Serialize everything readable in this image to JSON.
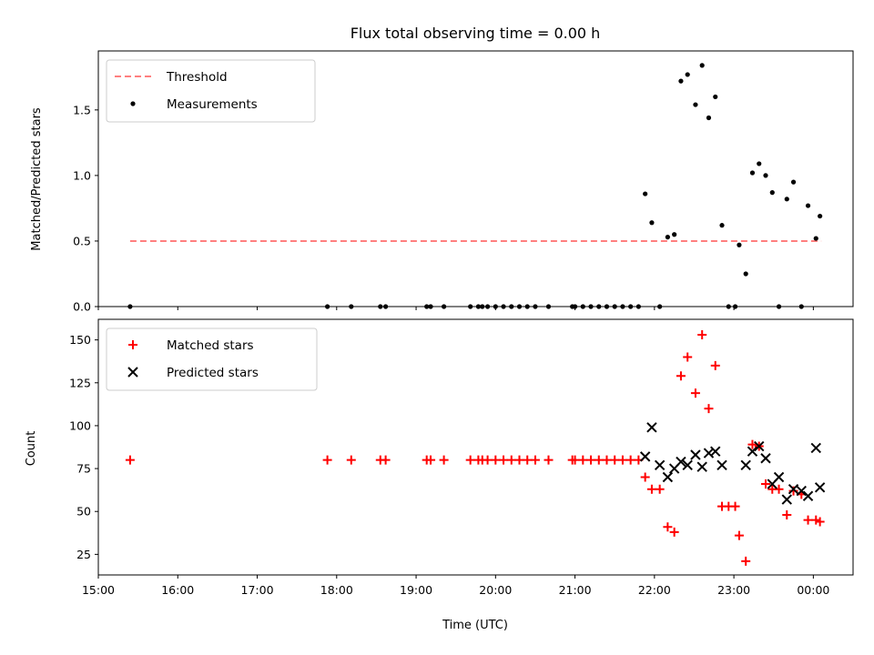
{
  "chart_data": [
    {
      "type": "scatter",
      "title": "Flux total observing time = 0.00 h",
      "xlabel": "",
      "ylabel": "Matched/Predicted stars",
      "xlim": [
        "15:00",
        "00:30"
      ],
      "ylim": [
        0,
        1.95
      ],
      "yticks": [
        "0.0",
        "0.5",
        "1.0",
        "1.5"
      ],
      "legend": "upper-left",
      "series": [
        {
          "name": "Threshold",
          "style": "dashed-line",
          "color": "#ff7f7f",
          "x": [
            "15:24",
            "00:06"
          ],
          "y": [
            0.5,
            0.5
          ]
        },
        {
          "name": "Measurements",
          "style": "dot",
          "color": "#000000",
          "x": [
            "15:24",
            "17:53",
            "18:11",
            "18:33",
            "18:37",
            "19:08",
            "19:11",
            "19:21",
            "19:41",
            "19:47",
            "19:50",
            "19:54",
            "20:00",
            "20:06",
            "20:12",
            "20:18",
            "20:24",
            "20:30",
            "20:40",
            "20:58",
            "21:00",
            "21:06",
            "21:12",
            "21:18",
            "21:24",
            "21:30",
            "21:36",
            "21:42",
            "21:48",
            "21:53",
            "21:58",
            "22:04",
            "22:10",
            "22:15",
            "22:20",
            "22:25",
            "22:31",
            "22:36",
            "22:41",
            "22:46",
            "22:51",
            "22:56",
            "23:01",
            "23:04",
            "23:09",
            "23:14",
            "23:19",
            "23:24",
            "23:29",
            "23:34",
            "23:40",
            "23:45",
            "23:51",
            "23:56",
            "00:02",
            "00:05"
          ],
          "y": [
            0,
            0,
            0,
            0,
            0,
            0,
            0,
            0,
            0,
            0,
            0,
            0,
            0,
            0,
            0,
            0,
            0,
            0,
            0,
            0,
            0,
            0,
            0,
            0,
            0,
            0,
            0,
            0,
            0,
            0.86,
            0.64,
            0,
            0.53,
            0.55,
            1.72,
            1.77,
            1.54,
            1.84,
            1.44,
            1.6,
            0.62,
            0,
            0,
            0.47,
            0.25,
            1.02,
            1.09,
            1.0,
            0.87,
            0,
            0.82,
            0.95,
            0,
            0.77,
            0.52,
            0.69
          ]
        }
      ]
    },
    {
      "type": "scatter",
      "title": "",
      "xlabel": "Time (UTC)",
      "ylabel": "Count",
      "xlim": [
        "15:00",
        "00:30"
      ],
      "ylim": [
        13,
        162
      ],
      "xticks": [
        "15:00",
        "16:00",
        "17:00",
        "18:00",
        "19:00",
        "20:00",
        "21:00",
        "22:00",
        "23:00",
        "00:00"
      ],
      "yticks": [
        "25",
        "50",
        "75",
        "100",
        "125",
        "150"
      ],
      "legend": "upper-left",
      "series": [
        {
          "name": "Matched stars",
          "style": "plus",
          "color": "#ff0000",
          "x": [
            "15:24",
            "17:53",
            "18:11",
            "18:33",
            "18:37",
            "19:08",
            "19:11",
            "19:21",
            "19:41",
            "19:47",
            "19:50",
            "19:54",
            "20:00",
            "20:06",
            "20:12",
            "20:18",
            "20:24",
            "20:30",
            "20:40",
            "20:58",
            "21:00",
            "21:06",
            "21:12",
            "21:18",
            "21:24",
            "21:30",
            "21:36",
            "21:42",
            "21:48",
            "21:53",
            "21:58",
            "22:04",
            "22:10",
            "22:15",
            "22:20",
            "22:25",
            "22:31",
            "22:36",
            "22:41",
            "22:46",
            "22:51",
            "22:56",
            "23:01",
            "23:04",
            "23:09",
            "23:14",
            "23:19",
            "23:24",
            "23:29",
            "23:34",
            "23:40",
            "23:45",
            "23:51",
            "23:56",
            "00:02",
            "00:05"
          ],
          "y": [
            80,
            80,
            80,
            80,
            80,
            80,
            80,
            80,
            80,
            80,
            80,
            80,
            80,
            80,
            80,
            80,
            80,
            80,
            80,
            80,
            80,
            80,
            80,
            80,
            80,
            80,
            80,
            80,
            80,
            70,
            63,
            63,
            41,
            38,
            129,
            140,
            119,
            153,
            110,
            135,
            53,
            53,
            53,
            36,
            21,
            89,
            88,
            66,
            63,
            63,
            48,
            62,
            60,
            45,
            45,
            44
          ]
        },
        {
          "name": "Predicted stars",
          "style": "x",
          "color": "#000000",
          "x": [
            "21:53",
            "21:58",
            "22:04",
            "22:10",
            "22:15",
            "22:20",
            "22:25",
            "22:31",
            "22:36",
            "22:41",
            "22:46",
            "22:51",
            "23:09",
            "23:14",
            "23:19",
            "23:24",
            "23:29",
            "23:34",
            "23:40",
            "23:45",
            "23:51",
            "23:56",
            "00:02",
            "00:05"
          ],
          "y": [
            82,
            99,
            77,
            70,
            75,
            79,
            77,
            83,
            76,
            84,
            85,
            77,
            77,
            85,
            88,
            81,
            66,
            70,
            57,
            63,
            62,
            59,
            87,
            64
          ]
        }
      ]
    }
  ]
}
